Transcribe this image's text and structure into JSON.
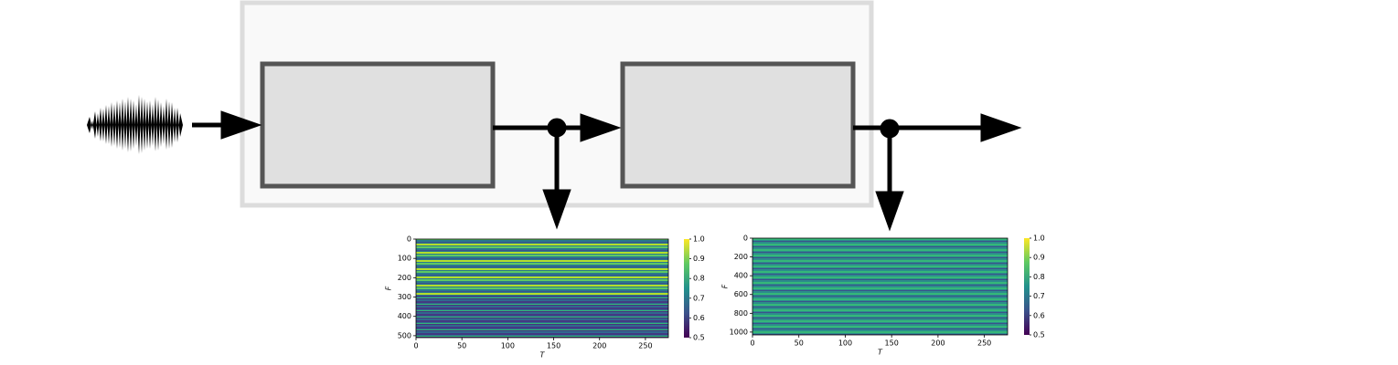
{
  "heatmaps": [
    {
      "xlabel": "T",
      "ylabel": "F",
      "xlim": [
        0,
        275
      ],
      "ylim": [
        0,
        510
      ],
      "xticks": [
        0,
        50,
        100,
        150,
        200,
        250
      ],
      "yticks": [
        0,
        100,
        200,
        300,
        400,
        500
      ],
      "colorbar": {
        "lim": [
          0.5,
          1
        ],
        "ticks": [
          0.5,
          0.6,
          0.7,
          0.8,
          0.9,
          {
            "value": 1,
            "label": "1.0"
          }
        ]
      }
    },
    {
      "xlabel": "T",
      "ylabel": "F",
      "xlim": [
        0,
        275
      ],
      "ylim": [
        0,
        1030
      ],
      "xticks": [
        0,
        50,
        100,
        150,
        200,
        250
      ],
      "yticks": [
        0,
        200,
        400,
        600,
        800,
        1000
      ],
      "colorbar": {
        "lim": [
          0.5,
          1
        ],
        "ticks": [
          0.5,
          0.6,
          0.7,
          0.8,
          0.9,
          {
            "value": 1,
            "label": "1.0"
          }
        ]
      }
    }
  ]
}
